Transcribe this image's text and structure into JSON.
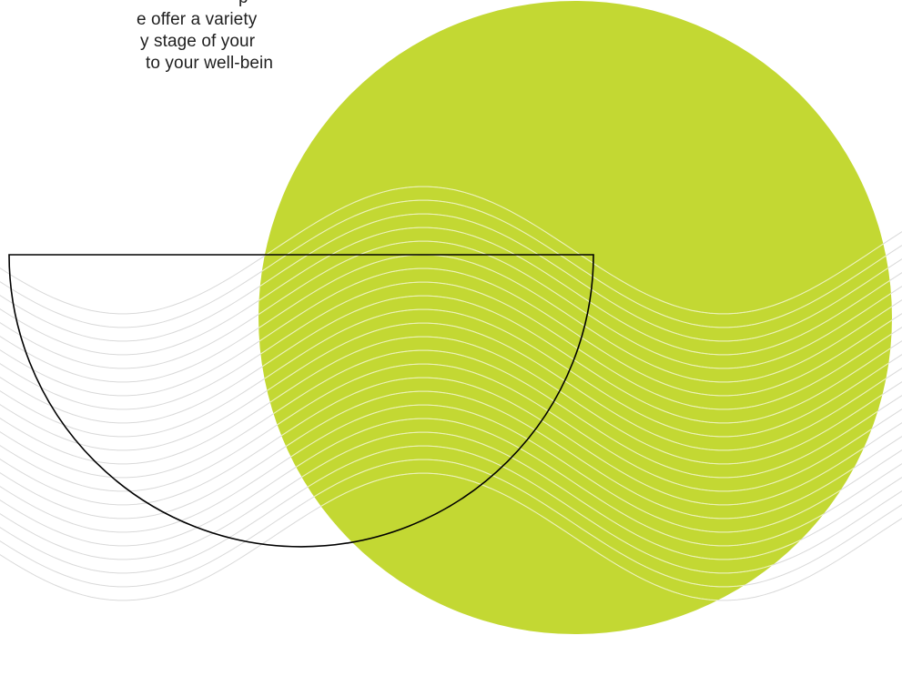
{
  "intro": {
    "lines": [
      "p",
      "e offer a variety",
      "y stage of your",
      "to your well-being"
    ]
  },
  "colors": {
    "background": "#ffffff",
    "circle": "#c3d833",
    "outline": "#000000",
    "wave_lines": "#d9d9d9",
    "text": "#1f1f1f"
  },
  "icons": {
    "circle": "green-circle-shape",
    "semicircle": "semicircle-outline-shape",
    "waves": "wavy-lines-pattern"
  }
}
